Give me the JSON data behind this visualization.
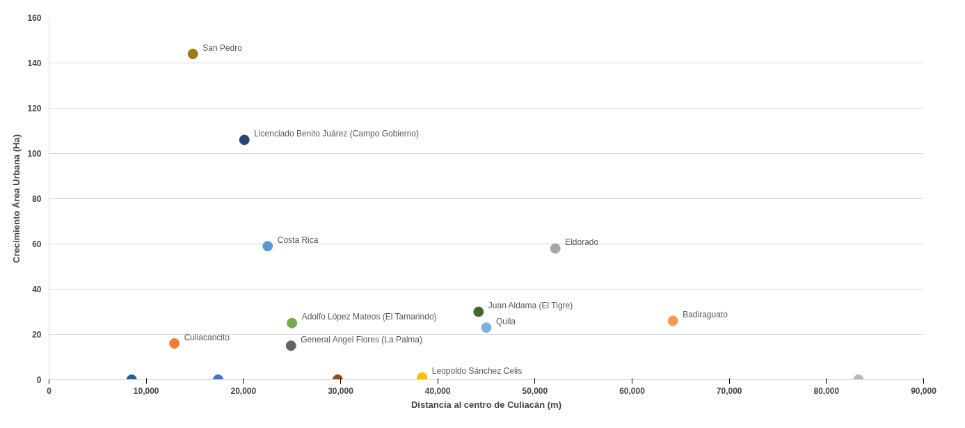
{
  "chart_data": {
    "type": "scatter",
    "xlabel": "Distancia al centro de Culiacán (m)",
    "ylabel": "Crecimiento Área Urbana (Ha)",
    "xlim": [
      0,
      90000
    ],
    "xticks": [
      {
        "value": 0,
        "label": "0"
      },
      {
        "value": 10000,
        "label": "10,000"
      },
      {
        "value": 20000,
        "label": "20,000"
      },
      {
        "value": 30000,
        "label": "30,000"
      },
      {
        "value": 40000,
        "label": "40,000"
      },
      {
        "value": 50000,
        "label": "50,000"
      },
      {
        "value": 60000,
        "label": "60,000"
      },
      {
        "value": 70000,
        "label": "70,000"
      },
      {
        "value": 80000,
        "label": "80,000"
      },
      {
        "value": 90000,
        "label": "90,000"
      }
    ],
    "ylim": [
      0,
      160
    ],
    "yticks": [
      0,
      20,
      40,
      60,
      80,
      100,
      120,
      140,
      160
    ],
    "grid": "y",
    "legend": false,
    "marker": "circle",
    "series": [
      {
        "name": "San Pedro",
        "color": "#9c7a14",
        "x": [
          14800
        ],
        "values": [
          144
        ]
      },
      {
        "name": "Licenciado Benito Juárez (Campo Gobierno)",
        "color": "#264478",
        "x": [
          20100
        ],
        "values": [
          106
        ]
      },
      {
        "name": "Costa Rica",
        "color": "#5b9bd5",
        "x": [
          22500
        ],
        "values": [
          59
        ]
      },
      {
        "name": "Eldorado",
        "color": "#a5a5a5",
        "x": [
          52100
        ],
        "values": [
          58
        ]
      },
      {
        "name": "Adolfo López Mateos (El Tamarindo)",
        "color": "#70ad47",
        "x": [
          25000
        ],
        "values": [
          25
        ]
      },
      {
        "name": "Juan Aldama (El Tigre)",
        "color": "#43682b",
        "x": [
          44200
        ],
        "values": [
          30
        ]
      },
      {
        "name": "Quila",
        "color": "#7cafdd",
        "x": [
          45000
        ],
        "values": [
          23
        ]
      },
      {
        "name": "Badiraguato",
        "color": "#f1975a",
        "x": [
          64200
        ],
        "values": [
          26
        ]
      },
      {
        "name": "Culiacancito",
        "color": "#ed7d31",
        "x": [
          12900
        ],
        "values": [
          16
        ]
      },
      {
        "name": "General Angel Flores (La Palma)",
        "color": "#636363",
        "x": [
          24900
        ],
        "values": [
          15
        ]
      },
      {
        "color": "#255e91",
        "x": [
          8500
        ],
        "values": [
          0
        ]
      },
      {
        "color": "#4472c4",
        "x": [
          17400
        ],
        "values": [
          0
        ]
      },
      {
        "color": "#9e480e",
        "x": [
          29700
        ],
        "values": [
          0
        ]
      },
      {
        "name": "Leopoldo Sánchez Celis",
        "color": "#ffc000",
        "x": [
          38400
        ],
        "values": [
          1
        ]
      },
      {
        "color": "#b7b7b7",
        "x": [
          83300
        ],
        "values": [
          0
        ]
      }
    ]
  }
}
